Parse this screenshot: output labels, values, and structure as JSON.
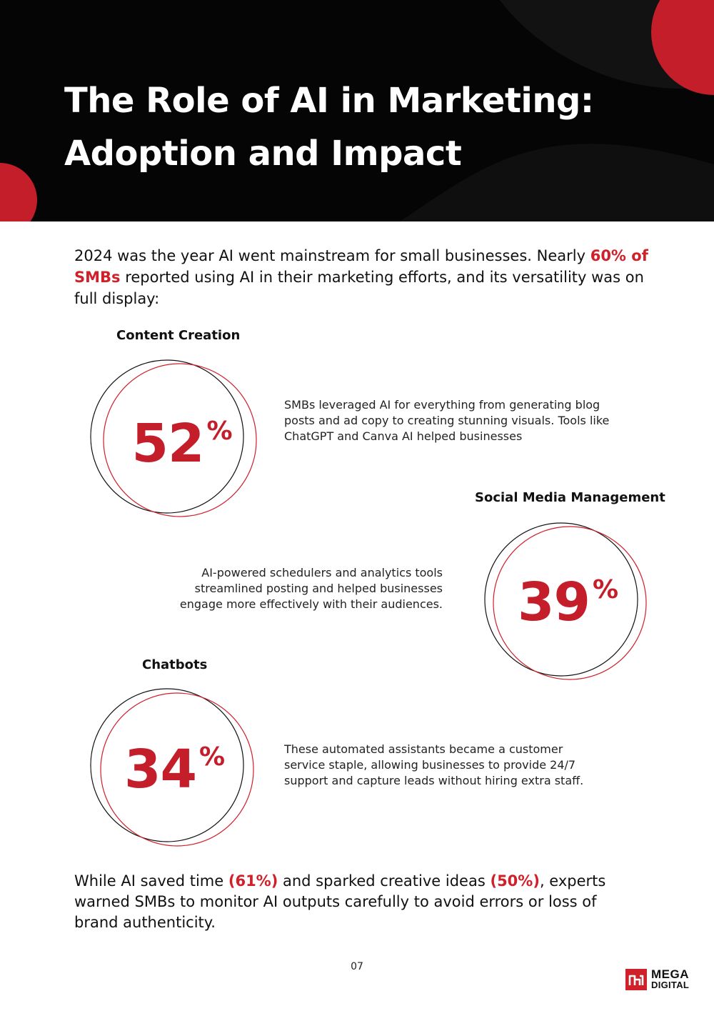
{
  "header": {
    "title_line1": "The Role of AI in Marketing:",
    "title_line2": "Adoption and Impact"
  },
  "intro": {
    "part1": "2024 was the year AI went mainstream for small businesses. Nearly ",
    "highlight": "60% of SMBs",
    "part2": " reported using AI in their marketing efforts, and its versatility was on full display:"
  },
  "stats": [
    {
      "label": "Content Creation",
      "value": "52",
      "symbol": "%",
      "description": "SMBs leveraged AI for everything from generating blog posts and ad copy to creating stunning visuals. Tools like ChatGPT and Canva AI helped businesses"
    },
    {
      "label": "Social Media Management",
      "value": "39",
      "symbol": "%",
      "description": "AI-powered schedulers and analytics tools streamlined posting and helped businesses engage more effectively with their audiences."
    },
    {
      "label": "Chatbots",
      "value": "34",
      "symbol": "%",
      "description": "These automated assistants became a customer service staple, allowing businesses to provide 24/7 support and capture leads without hiring extra staff."
    }
  ],
  "outro": {
    "part1": "While AI saved time ",
    "highlight1": "(61%)",
    "part2": " and sparked creative ideas ",
    "highlight2": "(50%)",
    "part3": ", experts warned SMBs to monitor AI outputs carefully to avoid errors or loss of brand authenticity."
  },
  "footer": {
    "page_number": "07",
    "logo_line1": "MEGA",
    "logo_line2": "DIGITAL"
  },
  "colors": {
    "accent": "#c41e2a",
    "header_bg": "#050505"
  }
}
